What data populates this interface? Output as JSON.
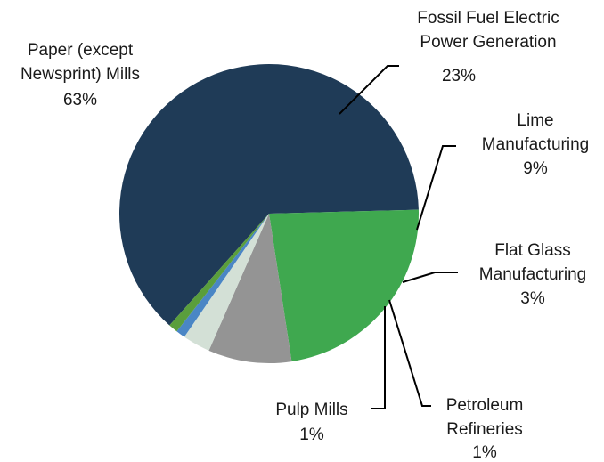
{
  "chart_data": {
    "type": "pie",
    "series": [
      {
        "name": "Paper (except Newsprint) Mills",
        "label_lines": [
          "Paper (except",
          "Newsprint) Mills"
        ],
        "pct_label": "63%",
        "value": 63,
        "color": "#1f3b57"
      },
      {
        "name": "Fossil Fuel Electric Power Generation",
        "label_lines": [
          "Fossil Fuel Electric",
          "Power Generation"
        ],
        "pct_label": "23%",
        "value": 23,
        "color": "#3fa84f"
      },
      {
        "name": "Lime Manufacturing",
        "label_lines": [
          "Lime",
          "Manufacturing"
        ],
        "pct_label": "9%",
        "value": 9,
        "color": "#949494"
      },
      {
        "name": "Flat Glass Manufacturing",
        "label_lines": [
          "Flat Glass",
          "Manufacturing"
        ],
        "pct_label": "3%",
        "value": 3,
        "color": "#d3e0d6"
      },
      {
        "name": "Petroleum Refineries",
        "label_lines": [
          "Petroleum",
          "Refineries"
        ],
        "pct_label": "1%",
        "value": 1,
        "color": "#4a86c5"
      },
      {
        "name": "Pulp Mills",
        "label_lines": [
          "Pulp Mills"
        ],
        "pct_label": "1%",
        "value": 1,
        "color": "#5a9e3c"
      }
    ]
  }
}
